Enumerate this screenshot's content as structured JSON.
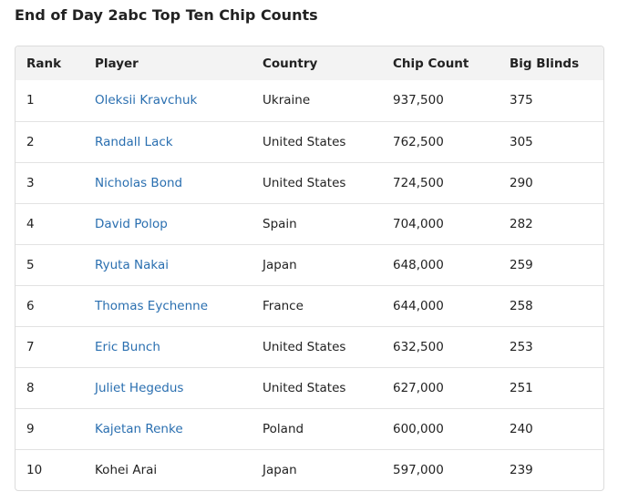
{
  "title": "End of Day 2abc Top Ten Chip Counts",
  "columns": {
    "rank": "Rank",
    "player": "Player",
    "country": "Country",
    "chips": "Chip Count",
    "bb": "Big Blinds"
  },
  "rows": [
    {
      "rank": "1",
      "player": "Oleksii Kravchuk",
      "linked": true,
      "country": "Ukraine",
      "chips": "937,500",
      "bb": "375"
    },
    {
      "rank": "2",
      "player": "Randall Lack",
      "linked": true,
      "country": "United States",
      "chips": "762,500",
      "bb": "305"
    },
    {
      "rank": "3",
      "player": "Nicholas Bond",
      "linked": true,
      "country": "United States",
      "chips": "724,500",
      "bb": "290"
    },
    {
      "rank": "4",
      "player": "David Polop",
      "linked": true,
      "country": "Spain",
      "chips": "704,000",
      "bb": "282"
    },
    {
      "rank": "5",
      "player": "Ryuta Nakai",
      "linked": true,
      "country": "Japan",
      "chips": "648,000",
      "bb": "259"
    },
    {
      "rank": "6",
      "player": "Thomas Eychenne",
      "linked": true,
      "country": "France",
      "chips": "644,000",
      "bb": "258"
    },
    {
      "rank": "7",
      "player": "Eric Bunch",
      "linked": true,
      "country": "United States",
      "chips": "632,500",
      "bb": "253"
    },
    {
      "rank": "8",
      "player": "Juliet Hegedus",
      "linked": true,
      "country": "United States",
      "chips": "627,000",
      "bb": "251"
    },
    {
      "rank": "9",
      "player": "Kajetan Renke",
      "linked": true,
      "country": "Poland",
      "chips": "600,000",
      "bb": "240"
    },
    {
      "rank": "10",
      "player": "Kohei Arai",
      "linked": false,
      "country": "Japan",
      "chips": "597,000",
      "bb": "239"
    }
  ],
  "colors": {
    "link": "#2a6fb0",
    "header_bg": "#f3f3f3",
    "border": "#dcdcdc"
  }
}
